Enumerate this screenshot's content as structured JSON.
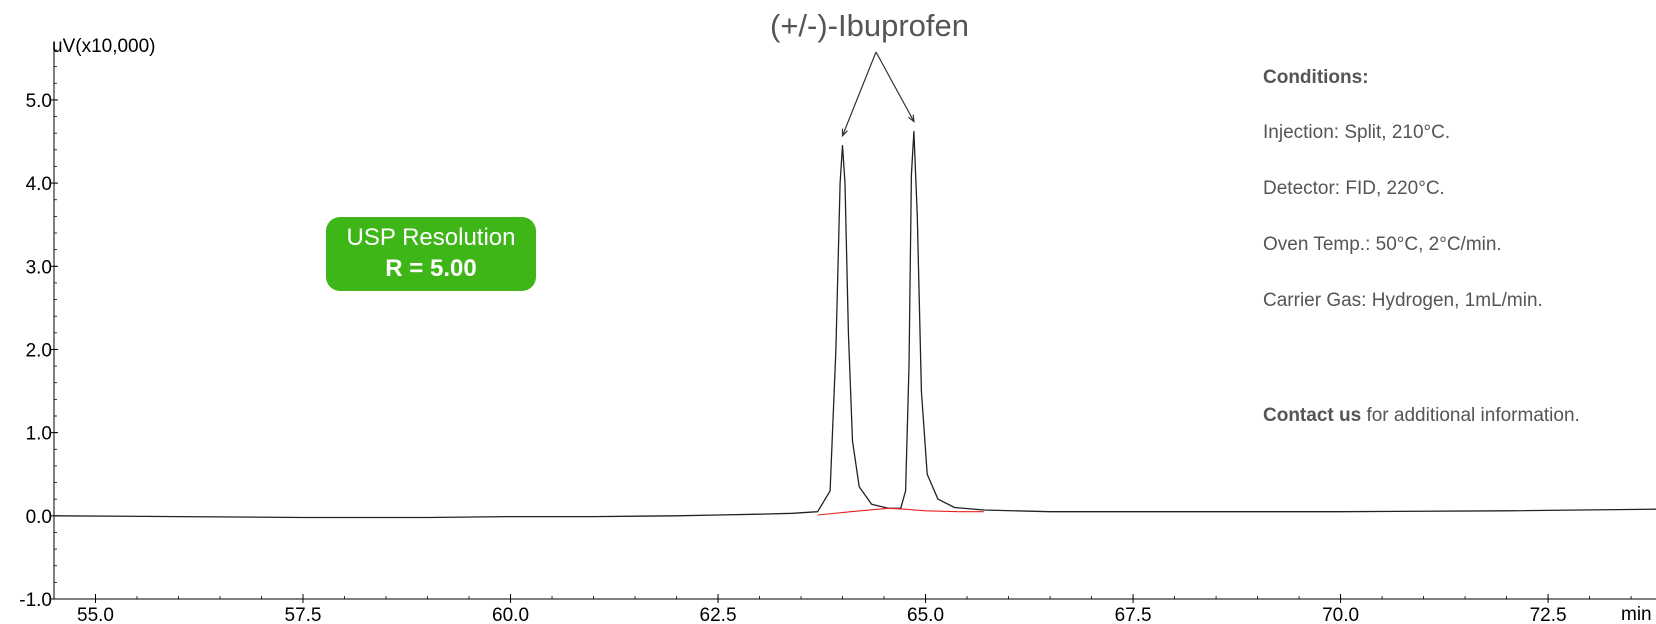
{
  "chart_data": {
    "type": "line",
    "ylabel": "uV(x10,000)",
    "xunit": "min",
    "xlim": [
      54.5,
      73.8
    ],
    "ylim": [
      -1.0,
      5.6
    ],
    "xticks": [
      55.0,
      57.5,
      60.0,
      62.5,
      65.0,
      67.5,
      70.0,
      72.5
    ],
    "yticks": [
      -1.0,
      0.0,
      1.0,
      2.0,
      3.0,
      4.0,
      5.0
    ],
    "xtick_labels": [
      "55.0",
      "57.5",
      "60.0",
      "62.5",
      "65.0",
      "67.5",
      "70.0",
      "72.5"
    ],
    "ytick_labels": [
      "-1.0",
      "0.0",
      "1.0",
      "2.0",
      "3.0",
      "4.0",
      "5.0"
    ],
    "grid": false,
    "series": [
      {
        "color": "#222222",
        "x": [
          54.5,
          56.0,
          57.5,
          59.0,
          60.0,
          61.0,
          62.0,
          62.5,
          63.0,
          63.4,
          63.7,
          63.85,
          63.92,
          63.97,
          64.0,
          64.03,
          64.07,
          64.12,
          64.2,
          64.35,
          64.55,
          64.7,
          64.76,
          64.8,
          64.83,
          64.86,
          64.9,
          64.95,
          65.02,
          65.15,
          65.35,
          65.7,
          66.5,
          68.0,
          70.0,
          72.0,
          73.8
        ],
        "y": [
          0.0,
          -0.01,
          -0.02,
          -0.02,
          -0.01,
          -0.01,
          0.0,
          0.01,
          0.02,
          0.03,
          0.05,
          0.3,
          2.0,
          4.0,
          4.45,
          4.0,
          2.2,
          0.9,
          0.35,
          0.14,
          0.09,
          0.09,
          0.3,
          1.8,
          4.1,
          4.62,
          3.6,
          1.5,
          0.5,
          0.2,
          0.1,
          0.07,
          0.05,
          0.05,
          0.05,
          0.06,
          0.08
        ]
      },
      {
        "color": "#e8231e",
        "x": [
          63.7,
          64.1,
          64.55,
          64.75,
          65.0,
          65.4,
          65.7
        ],
        "y": [
          0.01,
          0.05,
          0.09,
          0.08,
          0.06,
          0.05,
          0.05
        ]
      }
    ]
  },
  "annotation": {
    "label": "(+/-)-Ibuprofen",
    "targets": [
      {
        "x": 64.0,
        "y": 4.45
      },
      {
        "x": 64.86,
        "y": 4.62
      }
    ]
  },
  "badge": {
    "line1": "USP Resolution",
    "line2": "R = 5.00",
    "color": "#3fb618"
  },
  "conditions": {
    "heading": "Conditions:",
    "injection": "Injection: Split, 210°C.",
    "detector": "Detector: FID, 220°C.",
    "oven": "Oven Temp.: 50°C, 2°C/min.",
    "carrier": "Carrier Gas: Hydrogen, 1mL/min.",
    "contact_strong": "Contact us",
    "contact_rest": " for additional information."
  }
}
